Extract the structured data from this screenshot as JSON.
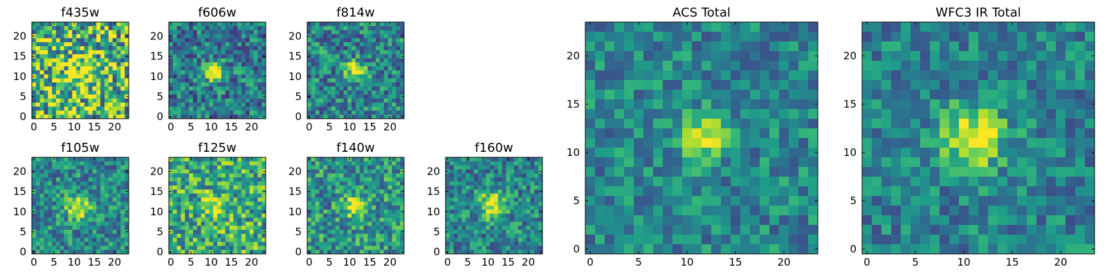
{
  "chart_data": [
    {
      "type": "heatmap",
      "title": "f435w",
      "x_ticks": [
        "0",
        "5",
        "10",
        "15",
        "20"
      ],
      "y_ticks": [
        "0",
        "5",
        "10",
        "15",
        "20"
      ],
      "xlim": [
        0,
        24
      ],
      "ylim": [
        0,
        24
      ],
      "grid_size": 24,
      "colormap": "viridis",
      "noise": 0.9,
      "base": 0.68,
      "peak": {
        "x": 12.5,
        "y": 11.5,
        "amp": 0.32,
        "sigma": 2.2
      }
    },
    {
      "type": "heatmap",
      "title": "f606w",
      "x_ticks": [
        "0",
        "5",
        "10",
        "15",
        "20"
      ],
      "y_ticks": [
        "0",
        "5",
        "10",
        "15",
        "20"
      ],
      "xlim": [
        0,
        24
      ],
      "ylim": [
        0,
        24
      ],
      "grid_size": 24,
      "colormap": "viridis",
      "noise": 0.55,
      "base": 0.42,
      "peak": {
        "x": 11.5,
        "y": 11.5,
        "amp": 0.6,
        "sigma": 1.7
      }
    },
    {
      "type": "heatmap",
      "title": "f814w",
      "x_ticks": [
        "0",
        "5",
        "10",
        "15",
        "20"
      ],
      "y_ticks": [
        "0",
        "5",
        "10",
        "15",
        "20"
      ],
      "xlim": [
        0,
        24
      ],
      "ylim": [
        0,
        24
      ],
      "grid_size": 24,
      "colormap": "viridis",
      "noise": 0.55,
      "base": 0.45,
      "peak": {
        "x": 12.0,
        "y": 12.0,
        "amp": 0.55,
        "sigma": 1.6
      }
    },
    {
      "type": "heatmap",
      "title": "f105w",
      "x_ticks": [
        "0",
        "5",
        "10",
        "15",
        "20"
      ],
      "y_ticks": [
        "0",
        "5",
        "10",
        "15",
        "20"
      ],
      "xlim": [
        0,
        24
      ],
      "ylim": [
        0,
        24
      ],
      "grid_size": 24,
      "colormap": "viridis",
      "noise": 0.5,
      "base": 0.48,
      "peak": {
        "x": 11.5,
        "y": 11.5,
        "amp": 0.52,
        "sigma": 2.0
      }
    },
    {
      "type": "heatmap",
      "title": "f125w",
      "x_ticks": [
        "0",
        "5",
        "10",
        "15",
        "20"
      ],
      "y_ticks": [
        "0",
        "5",
        "10",
        "15",
        "20"
      ],
      "xlim": [
        0,
        24
      ],
      "ylim": [
        0,
        24
      ],
      "grid_size": 24,
      "colormap": "viridis",
      "noise": 0.65,
      "base": 0.62,
      "peak": {
        "x": 11.5,
        "y": 11.5,
        "amp": 0.38,
        "sigma": 2.1
      }
    },
    {
      "type": "heatmap",
      "title": "f140w",
      "x_ticks": [
        "0",
        "5",
        "10",
        "15",
        "20"
      ],
      "y_ticks": [
        "0",
        "5",
        "10",
        "15",
        "20"
      ],
      "xlim": [
        0,
        24
      ],
      "ylim": [
        0,
        24
      ],
      "grid_size": 24,
      "colormap": "viridis",
      "noise": 0.55,
      "base": 0.52,
      "peak": {
        "x": 11.5,
        "y": 12.0,
        "amp": 0.48,
        "sigma": 2.0
      }
    },
    {
      "type": "heatmap",
      "title": "f160w",
      "x_ticks": [
        "0",
        "5",
        "10",
        "15",
        "20"
      ],
      "y_ticks": [
        "0",
        "5",
        "10",
        "15",
        "20"
      ],
      "xlim": [
        0,
        24
      ],
      "ylim": [
        0,
        24
      ],
      "grid_size": 24,
      "colormap": "viridis",
      "noise": 0.5,
      "base": 0.46,
      "peak": {
        "x": 11.5,
        "y": 12.0,
        "amp": 0.54,
        "sigma": 2.4
      }
    },
    {
      "type": "heatmap",
      "title": "ACS Total",
      "x_ticks": [
        "0",
        "5",
        "10",
        "15",
        "20"
      ],
      "y_ticks": [
        "0",
        "5",
        "10",
        "15",
        "20"
      ],
      "xlim": [
        0,
        24
      ],
      "ylim": [
        0,
        24
      ],
      "grid_size": 24,
      "colormap": "viridis",
      "noise": 0.42,
      "base": 0.46,
      "peak": {
        "x": 12.0,
        "y": 12.0,
        "amp": 0.54,
        "sigma": 1.7
      }
    },
    {
      "type": "heatmap",
      "title": "WFC3 IR Total",
      "x_ticks": [
        "0",
        "5",
        "10",
        "15",
        "20"
      ],
      "y_ticks": [
        "0",
        "5",
        "10",
        "15",
        "20"
      ],
      "xlim": [
        0,
        24
      ],
      "ylim": [
        0,
        24
      ],
      "grid_size": 24,
      "colormap": "viridis",
      "noise": 0.42,
      "base": 0.44,
      "peak": {
        "x": 11.5,
        "y": 12.0,
        "amp": 0.56,
        "sigma": 2.3
      }
    }
  ]
}
